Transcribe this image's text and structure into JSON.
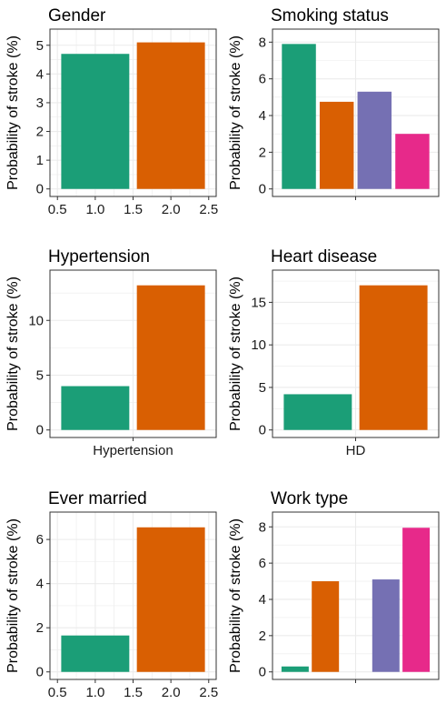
{
  "chart_data": [
    {
      "type": "bar",
      "title": "Gender",
      "ylabel": "Probability of stroke (%)",
      "x_axis": "continuous",
      "xlim": [
        0.5,
        2.5
      ],
      "x_ticks": [
        "0.5",
        "1.0",
        "1.5",
        "2.0",
        "2.5"
      ],
      "ylim": [
        0,
        5.3
      ],
      "y_ticks": [
        0,
        1,
        2,
        3,
        4,
        5
      ],
      "bars": [
        {
          "x": 1,
          "value": 4.7,
          "color": "#1B9E77"
        },
        {
          "x": 2,
          "value": 5.1,
          "color": "#D95F02"
        }
      ]
    },
    {
      "type": "bar",
      "title": "Smoking status",
      "ylabel": "Probability of stroke (%)",
      "x_axis": "categorical",
      "x_ticks": [],
      "ylim": [
        0,
        8.3
      ],
      "y_ticks": [
        0,
        2,
        4,
        6,
        8
      ],
      "bars": [
        {
          "value": 7.9,
          "color": "#1B9E77"
        },
        {
          "value": 4.75,
          "color": "#D95F02"
        },
        {
          "value": 5.3,
          "color": "#7570B3"
        },
        {
          "value": 3.0,
          "color": "#E7298A"
        }
      ]
    },
    {
      "type": "bar",
      "title": "Hypertension",
      "ylabel": "Probability of stroke (%)",
      "x_axis": "categorical",
      "x_ticks": [
        "Hypertension"
      ],
      "ylim": [
        0,
        13.9
      ],
      "y_ticks": [
        0,
        5,
        10
      ],
      "bars": [
        {
          "value": 4.0,
          "color": "#1B9E77"
        },
        {
          "value": 13.2,
          "color": "#D95F02"
        }
      ]
    },
    {
      "type": "bar",
      "title": "Heart disease",
      "ylabel": "Probability of stroke (%)",
      "x_axis": "categorical",
      "x_ticks": [
        "HD"
      ],
      "ylim": [
        0,
        17.9
      ],
      "y_ticks": [
        0,
        5,
        10,
        15
      ],
      "bars": [
        {
          "value": 4.2,
          "color": "#1B9E77"
        },
        {
          "value": 17.0,
          "color": "#D95F02"
        }
      ]
    },
    {
      "type": "bar",
      "title": "Ever married",
      "ylabel": "Probability of stroke (%)",
      "x_axis": "continuous",
      "xlim": [
        0.5,
        2.5
      ],
      "x_ticks": [
        "0.5",
        "1.0",
        "1.5",
        "2.0",
        "2.5"
      ],
      "ylim": [
        0,
        6.9
      ],
      "y_ticks": [
        0,
        2,
        4,
        6
      ],
      "bars": [
        {
          "x": 1,
          "value": 1.65,
          "color": "#1B9E77"
        },
        {
          "x": 2,
          "value": 6.55,
          "color": "#D95F02"
        }
      ]
    },
    {
      "type": "bar",
      "title": "Work type",
      "ylabel": "Probability of stroke (%)",
      "x_axis": "categorical",
      "x_ticks": [],
      "ylim": [
        0,
        8.4
      ],
      "y_ticks": [
        0,
        2,
        4,
        6,
        8
      ],
      "bars": [
        {
          "value": 0.3,
          "color": "#1B9E77"
        },
        {
          "value": 5.0,
          "color": "#D95F02"
        },
        {
          "value": 0,
          "color": "#E6AB02"
        },
        {
          "value": 5.1,
          "color": "#7570B3"
        },
        {
          "value": 7.95,
          "color": "#E7298A"
        }
      ]
    }
  ]
}
